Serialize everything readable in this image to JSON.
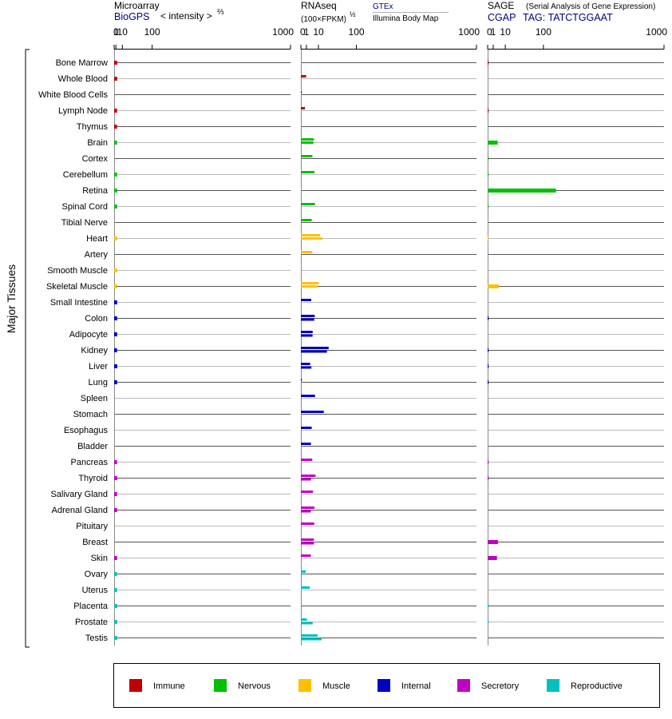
{
  "colors": {
    "immune": "#c00000",
    "nervous": "#00c000",
    "muscle": "#ffc000",
    "internal": "#0000c0",
    "secretory": "#c000c0",
    "reproductive": "#00c0c0",
    "link": "#000080",
    "axis": "#888888"
  },
  "panels": {
    "microarray": {
      "title": "Microarray",
      "source": "BioGPS",
      "unit_main": "< intensity >",
      "unit_exp": "⅔"
    },
    "rnaseq": {
      "title": "RNAseq",
      "unit": "(100×FPKM)",
      "unit_exp": "½",
      "source1": "GTEx",
      "source2": "Illumina Body Map"
    },
    "sage": {
      "title": "SAGE",
      "subtitle": "(Serial Analysis of Gene Expression)",
      "source": "CGAP",
      "tag": "TAG: TATCTGGAAT"
    }
  },
  "side_label": "Major Tissues",
  "legend": [
    {
      "key": "immune",
      "label": "Immune"
    },
    {
      "key": "nervous",
      "label": "Nervous"
    },
    {
      "key": "muscle",
      "label": "Muscle"
    },
    {
      "key": "internal",
      "label": "Internal"
    },
    {
      "key": "secretory",
      "label": "Secretory"
    },
    {
      "key": "reproductive",
      "label": "Reproductive"
    }
  ],
  "chart_data": {
    "type": "bar",
    "orientation": "horizontal",
    "scale": "power",
    "axis_ticks": [
      "0",
      "1",
      "10",
      "100",
      "1000"
    ],
    "tick_values": [
      0,
      1,
      10,
      100,
      1000
    ],
    "xlim": [
      0,
      1000
    ],
    "categories": [
      "Bone Marrow",
      "Whole Blood",
      "White Blood Cells",
      "Lymph Node",
      "Thymus",
      "Brain",
      "Cortex",
      "Cerebellum",
      "Retina",
      "Spinal Cord",
      "Tibial Nerve",
      "Heart",
      "Artery",
      "Smooth Muscle",
      "Skeletal Muscle",
      "Small Intestine",
      "Colon",
      "Adipocyte",
      "Kidney",
      "Liver",
      "Lung",
      "Spleen",
      "Stomach",
      "Esophagus",
      "Bladder",
      "Pancreas",
      "Thyroid",
      "Salivary Gland",
      "Adrenal Gland",
      "Pituitary",
      "Breast",
      "Skin",
      "Ovary",
      "Uterus",
      "Placenta",
      "Prostate",
      "Testis"
    ],
    "groups": [
      "immune",
      "immune",
      "immune",
      "immune",
      "immune",
      "nervous",
      "nervous",
      "nervous",
      "nervous",
      "nervous",
      "nervous",
      "muscle",
      "muscle",
      "muscle",
      "muscle",
      "internal",
      "internal",
      "internal",
      "internal",
      "internal",
      "internal",
      "internal",
      "internal",
      "internal",
      "internal",
      "secretory",
      "secretory",
      "secretory",
      "secretory",
      "secretory",
      "secretory",
      "secretory",
      "reproductive",
      "reproductive",
      "reproductive",
      "reproductive",
      "reproductive"
    ],
    "series": [
      {
        "panel": "microarray",
        "name": "BioGPS",
        "values": [
          2.2,
          2.2,
          null,
          2.1,
          2.1,
          2.1,
          null,
          2.1,
          2.2,
          2.2,
          null,
          2.2,
          null,
          2.2,
          2.2,
          2.2,
          2.2,
          2.2,
          2.1,
          2.3,
          2.2,
          null,
          null,
          null,
          null,
          2.1,
          2.2,
          2.1,
          2.1,
          null,
          null,
          2.1,
          2.0,
          2.1,
          2.2,
          2.2,
          2.1
        ]
      },
      {
        "panel": "rnaseq",
        "name": "GTEx",
        "values": [
          null,
          null,
          null,
          null,
          null,
          5.5,
          null,
          null,
          null,
          null,
          null,
          12.0,
          null,
          null,
          10.5,
          null,
          null,
          null,
          null,
          null,
          null,
          null,
          null,
          null,
          null,
          null,
          null,
          null,
          null,
          null,
          null,
          null,
          null,
          null,
          null,
          null,
          null
        ]
      },
      {
        "panel": "rnaseq",
        "name": "Illumina Body Map",
        "values": [
          null,
          0.9,
          0.02,
          0.55,
          null,
          5.0,
          4.3,
          6.0,
          null,
          6.5,
          3.8,
          15.0,
          4.2,
          null,
          9.5,
          3.5,
          6.2,
          4.5,
          25.0,
          2.8,
          0.01,
          6.5,
          17.0,
          3.8,
          3.3,
          4.2,
          7.0,
          4.8,
          6.0,
          5.8,
          5.5,
          3.2,
          0.8,
          2.6,
          null,
          1.2,
          9.0
        ]
      },
      {
        "panel": "rnaseq",
        "name": "Illumina Body Map (2)",
        "values": [
          null,
          null,
          null,
          null,
          null,
          null,
          null,
          null,
          null,
          null,
          null,
          null,
          null,
          null,
          null,
          null,
          5.8,
          4.4,
          22.0,
          3.6,
          null,
          null,
          null,
          null,
          null,
          null,
          3.3,
          null,
          3.2,
          null,
          5.6,
          null,
          0.01,
          null,
          null,
          4.5,
          14.0
        ]
      },
      {
        "panel": "sage",
        "name": "CGAP",
        "values": [
          0.01,
          null,
          null,
          0.01,
          null,
          3.2,
          0.01,
          0.01,
          150,
          0.01,
          null,
          0.005,
          null,
          null,
          4.0,
          null,
          0.01,
          null,
          0.01,
          0.01,
          0.01,
          null,
          null,
          null,
          null,
          0.01,
          0.01,
          null,
          null,
          null,
          3.4,
          2.8,
          null,
          null,
          0.01,
          0.01,
          null
        ]
      }
    ]
  }
}
